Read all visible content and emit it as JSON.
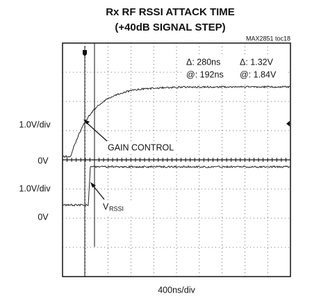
{
  "chart_data": {
    "type": "scope",
    "title": "Rx RF RSSI ATTACK TIME",
    "subtitle": "(+40dB SIGNAL STEP)",
    "note": "MAX2851 toc18",
    "y_labels": [
      "1.0V/div",
      "0V",
      "1.0V/div",
      "0V"
    ],
    "x_label": "400ns/div",
    "cursor_readout": [
      "Δ: 280ns",
      "Δ: 1.32V",
      "@: 192ns",
      "@: 1.84V"
    ],
    "annotations": [
      "GAIN CONTROL",
      "V",
      "RSSI"
    ]
  }
}
